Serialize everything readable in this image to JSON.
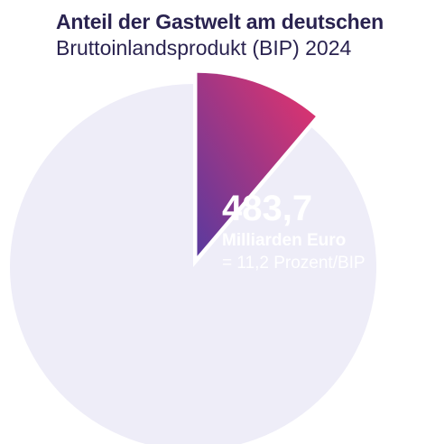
{
  "header": {
    "title": "Anteil der Gastwelt am deutschen",
    "subtitle": "Bruttoinlandsprodukt (BIP) 2024"
  },
  "chart_data": {
    "type": "pie",
    "title": "Anteil der Gastwelt am deutschen",
    "subtitle": "Bruttoinlandsprodukt (BIP) 2024",
    "slices": [
      {
        "value_percent": 11.2,
        "exploded": true,
        "color_start": "#e8336b",
        "color_end": "#5a3a9e"
      },
      {
        "value_percent": 88.8,
        "exploded": false,
        "color": "#eeedf8"
      }
    ],
    "annotation": {
      "value": "483,7",
      "unit": "Milliarden Euro",
      "share": "= 11,2 Prozent/BIP"
    }
  }
}
